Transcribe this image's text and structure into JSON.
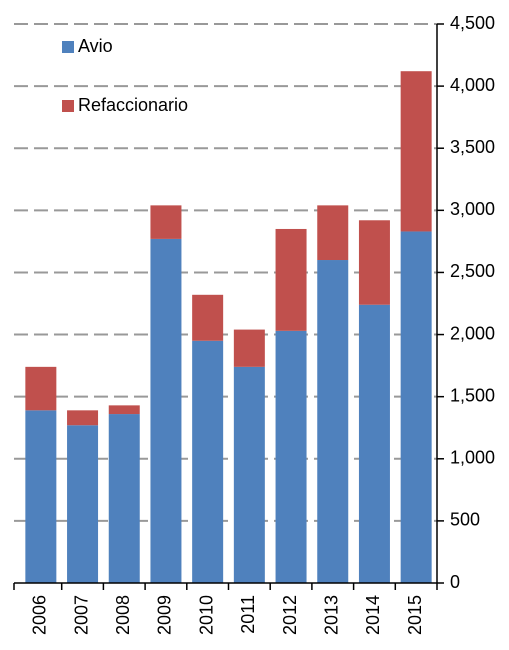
{
  "chart_data": {
    "type": "stacked-bar",
    "categories": [
      "2006",
      "2007",
      "2008",
      "2009",
      "2010",
      "2011",
      "2012",
      "2013",
      "2014",
      "2015"
    ],
    "series": [
      {
        "name": "Avio",
        "color": "#4f81bd",
        "values": [
          1390,
          1270,
          1360,
          2770,
          1950,
          1740,
          2030,
          2600,
          2240,
          2830
        ]
      },
      {
        "name": "Refaccionario",
        "color": "#c0504d",
        "values": [
          350,
          120,
          70,
          270,
          370,
          300,
          820,
          440,
          680,
          1290
        ]
      }
    ],
    "ylim": [
      0,
      4500
    ],
    "yticks": [
      0,
      500,
      {
        "value": 1000,
        "label": "1,000"
      },
      {
        "value": 1500,
        "label": "1,500"
      },
      {
        "value": 2000,
        "label": "2,000"
      },
      {
        "value": 2500,
        "label": "2,500"
      },
      {
        "value": 3000,
        "label": "3,000"
      },
      {
        "value": 3500,
        "label": "3,500"
      },
      {
        "value": 4000,
        "label": "4,000"
      },
      {
        "value": 4500,
        "label": "4,500"
      }
    ],
    "grid": true,
    "legend": "top-left"
  }
}
